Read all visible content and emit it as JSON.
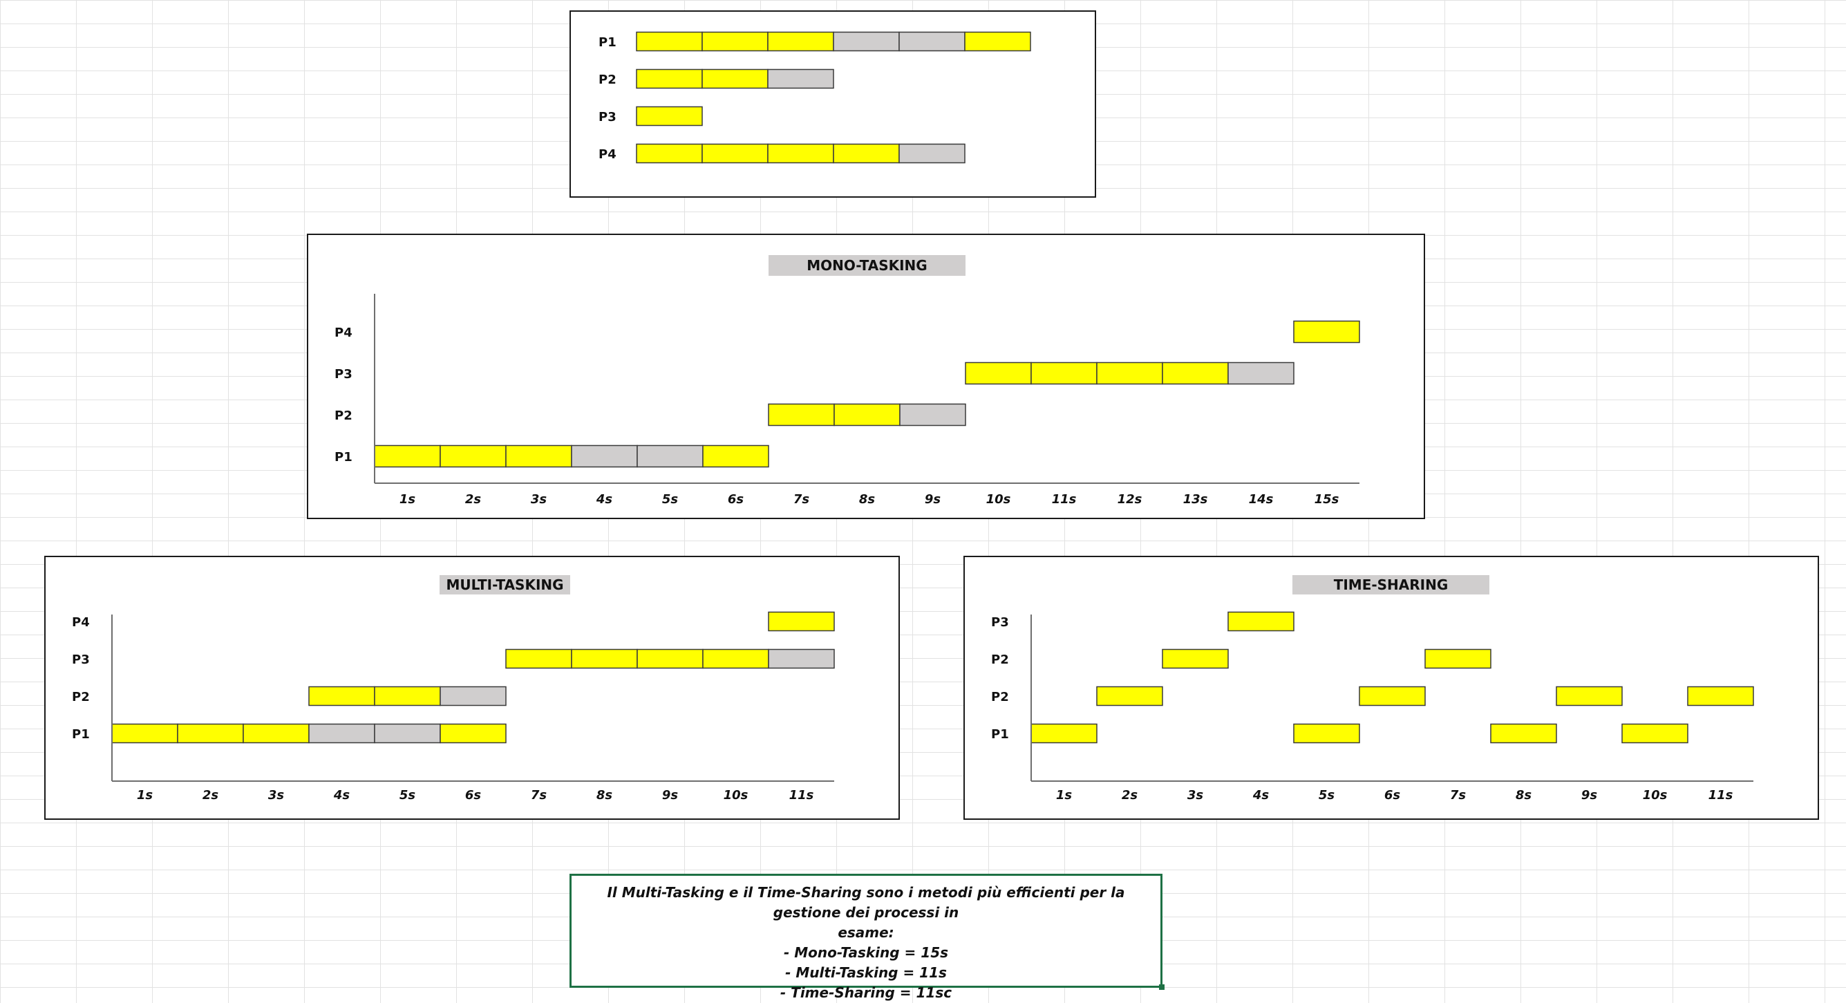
{
  "chart_data": [
    {
      "type": "gantt",
      "id": "processi",
      "title": "",
      "axis": false,
      "rows": [
        {
          "label": "P1",
          "segments": [
            {
              "start": 0,
              "end": 3,
              "state": "run"
            },
            {
              "start": 3,
              "end": 5,
              "state": "wait"
            },
            {
              "start": 5,
              "end": 6,
              "state": "run"
            }
          ]
        },
        {
          "label": "P2",
          "segments": [
            {
              "start": 0,
              "end": 2,
              "state": "run"
            },
            {
              "start": 2,
              "end": 3,
              "state": "wait"
            }
          ]
        },
        {
          "label": "P3",
          "segments": [
            {
              "start": 0,
              "end": 1,
              "state": "run"
            }
          ]
        },
        {
          "label": "P4",
          "segments": [
            {
              "start": 0,
              "end": 4,
              "state": "run"
            },
            {
              "start": 4,
              "end": 5,
              "state": "wait"
            }
          ]
        }
      ]
    },
    {
      "type": "gantt",
      "id": "mono",
      "title": "MONO-TASKING",
      "axis": true,
      "ticks": [
        "1s",
        "2s",
        "3s",
        "4s",
        "5s",
        "6s",
        "7s",
        "8s",
        "9s",
        "10s",
        "11s",
        "12s",
        "13s",
        "14s",
        "15s"
      ],
      "rows": [
        {
          "label": "P4",
          "segments": [
            {
              "start": 14,
              "end": 15,
              "state": "run"
            }
          ]
        },
        {
          "label": "P3",
          "segments": [
            {
              "start": 9,
              "end": 13,
              "state": "run"
            },
            {
              "start": 13,
              "end": 14,
              "state": "wait"
            }
          ]
        },
        {
          "label": "P2",
          "segments": [
            {
              "start": 6,
              "end": 8,
              "state": "run"
            },
            {
              "start": 8,
              "end": 9,
              "state": "wait"
            }
          ]
        },
        {
          "label": "P1",
          "segments": [
            {
              "start": 0,
              "end": 3,
              "state": "run"
            },
            {
              "start": 3,
              "end": 5,
              "state": "wait"
            },
            {
              "start": 5,
              "end": 6,
              "state": "run"
            }
          ]
        }
      ]
    },
    {
      "type": "gantt",
      "id": "multi",
      "title": "MULTI-TASKING",
      "axis": true,
      "ticks": [
        "1s",
        "2s",
        "3s",
        "4s",
        "5s",
        "6s",
        "7s",
        "8s",
        "9s",
        "10s",
        "11s"
      ],
      "rows": [
        {
          "label": "P4",
          "segments": [
            {
              "start": 10,
              "end": 11,
              "state": "run"
            }
          ]
        },
        {
          "label": "P3",
          "segments": [
            {
              "start": 6,
              "end": 10,
              "state": "run"
            },
            {
              "start": 10,
              "end": 11,
              "state": "wait"
            }
          ]
        },
        {
          "label": "P2",
          "segments": [
            {
              "start": 3,
              "end": 5,
              "state": "run"
            },
            {
              "start": 5,
              "end": 6,
              "state": "wait"
            }
          ]
        },
        {
          "label": "P1",
          "segments": [
            {
              "start": 0,
              "end": 3,
              "state": "run"
            },
            {
              "start": 3,
              "end": 5,
              "state": "wait"
            },
            {
              "start": 5,
              "end": 6,
              "state": "run"
            }
          ]
        }
      ]
    },
    {
      "type": "gantt",
      "id": "ts",
      "title": "TIME-SHARING",
      "axis": true,
      "ticks": [
        "1s",
        "2s",
        "3s",
        "4s",
        "5s",
        "6s",
        "7s",
        "8s",
        "9s",
        "10s",
        "11s"
      ],
      "rows": [
        {
          "label": "P3",
          "segments": [
            {
              "start": 3,
              "end": 4,
              "state": "run"
            }
          ]
        },
        {
          "label": "P2",
          "segments": [
            {
              "start": 2,
              "end": 3,
              "state": "run"
            },
            {
              "start": 6,
              "end": 7,
              "state": "run"
            }
          ]
        },
        {
          "label": "P2",
          "segments": [
            {
              "start": 1,
              "end": 2,
              "state": "run"
            },
            {
              "start": 5,
              "end": 6,
              "state": "run"
            },
            {
              "start": 8,
              "end": 9,
              "state": "run"
            },
            {
              "start": 10,
              "end": 11,
              "state": "run"
            }
          ]
        },
        {
          "label": "P1",
          "segments": [
            {
              "start": 0,
              "end": 1,
              "state": "run"
            },
            {
              "start": 4,
              "end": 5,
              "state": "run"
            },
            {
              "start": 7,
              "end": 8,
              "state": "run"
            },
            {
              "start": 9,
              "end": 10,
              "state": "run"
            }
          ]
        }
      ]
    }
  ],
  "colors": {
    "run": "#ffff00",
    "wait": "#d0cece"
  },
  "note": {
    "lines": [
      "Il Multi-Tasking e il Time-Sharing sono i metodi più efficienti per la gestione dei processi in",
      "esame:",
      "- Mono-Tasking = 15s",
      "- Multi-Tasking = 11s",
      "- Time-Sharing = 11sc"
    ]
  }
}
